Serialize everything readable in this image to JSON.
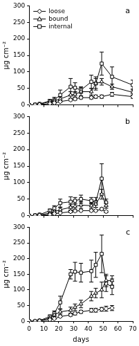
{
  "chart_data": [
    {
      "type": "line",
      "annotation": "a",
      "ylabel": "µg cm⁻²",
      "legend": "upper left",
      "grid": false,
      "tick_labels": "y",
      "x": [
        0,
        4,
        7,
        14,
        17,
        21,
        28,
        31,
        35,
        42,
        45,
        49,
        56,
        70
      ],
      "xlim": [
        0,
        70
      ],
      "xticks": [
        0,
        10,
        20,
        30,
        40,
        50,
        60,
        70
      ],
      "ylim": [
        0,
        300
      ],
      "yticks": [
        0,
        50,
        100,
        150,
        200,
        250,
        300
      ],
      "series": [
        {
          "name": "loose",
          "color": "#000000",
          "marker": "diamond",
          "values": [
            0,
            0,
            1,
            4,
            6,
            10,
            15,
            18,
            22,
            22,
            25,
            25,
            32,
            25
          ],
          "errors": [
            0,
            0,
            0,
            1,
            2,
            2,
            3,
            4,
            4,
            4,
            5,
            5,
            6,
            5
          ]
        },
        {
          "name": "bound",
          "color": "#000000",
          "marker": "triangle",
          "values": [
            0,
            0,
            2,
            10,
            12,
            18,
            30,
            32,
            40,
            40,
            65,
            70,
            55,
            38
          ],
          "errors": [
            0,
            0,
            1,
            3,
            4,
            6,
            10,
            8,
            12,
            10,
            15,
            10,
            8,
            10
          ]
        },
        {
          "name": "internal",
          "color": "#000000",
          "marker": "square",
          "values": [
            0,
            1,
            3,
            12,
            15,
            30,
            55,
            52,
            45,
            70,
            65,
            125,
            85,
            60
          ],
          "errors": [
            0,
            0,
            1,
            5,
            8,
            15,
            25,
            15,
            10,
            20,
            20,
            35,
            30,
            15
          ]
        }
      ]
    },
    {
      "type": "line",
      "annotation": "b",
      "ylabel": "µg cm⁻²",
      "grid": false,
      "tick_labels": "y",
      "x": [
        0,
        4,
        7,
        14,
        17,
        21,
        28,
        31,
        35,
        42,
        45,
        49,
        52
      ],
      "xlim": [
        0,
        70
      ],
      "xticks": [
        0,
        10,
        20,
        30,
        40,
        50,
        60,
        70
      ],
      "ylim": [
        0,
        300
      ],
      "yticks": [
        0,
        50,
        100,
        150,
        200,
        250,
        300
      ],
      "series": [
        {
          "name": "loose",
          "color": "#000000",
          "marker": "diamond",
          "values": [
            0,
            0,
            1,
            3,
            6,
            8,
            12,
            14,
            15,
            15,
            15,
            20,
            12
          ],
          "errors": [
            0,
            0,
            0,
            1,
            2,
            2,
            3,
            3,
            3,
            3,
            3,
            4,
            3
          ]
        },
        {
          "name": "bound",
          "color": "#000000",
          "marker": "triangle",
          "values": [
            0,
            0,
            2,
            8,
            12,
            18,
            25,
            28,
            32,
            30,
            35,
            65,
            30
          ],
          "errors": [
            0,
            0,
            1,
            3,
            4,
            6,
            8,
            8,
            10,
            8,
            10,
            15,
            8
          ]
        },
        {
          "name": "internal",
          "color": "#000000",
          "marker": "square",
          "values": [
            0,
            1,
            3,
            15,
            22,
            38,
            42,
            45,
            50,
            45,
            40,
            112,
            40
          ],
          "errors": [
            0,
            0,
            1,
            5,
            8,
            12,
            15,
            10,
            12,
            10,
            15,
            45,
            10
          ]
        }
      ]
    },
    {
      "type": "line",
      "annotation": "c",
      "ylabel": "µg cm⁻²",
      "xlabel": "days",
      "grid": false,
      "x": [
        0,
        4,
        7,
        14,
        17,
        21,
        28,
        31,
        35,
        42,
        45,
        49,
        52,
        56
      ],
      "xlim": [
        0,
        70
      ],
      "xticks": [
        0,
        10,
        20,
        30,
        40,
        50,
        60,
        70
      ],
      "ylim": [
        0,
        300
      ],
      "yticks": [
        0,
        50,
        100,
        150,
        200,
        250,
        300
      ],
      "series": [
        {
          "name": "loose",
          "color": "#000000",
          "marker": "diamond",
          "values": [
            0,
            0,
            1,
            5,
            8,
            15,
            20,
            25,
            30,
            35,
            35,
            38,
            40,
            42
          ],
          "errors": [
            0,
            0,
            1,
            2,
            2,
            3,
            4,
            5,
            5,
            6,
            6,
            6,
            8,
            8
          ]
        },
        {
          "name": "bound",
          "color": "#000000",
          "marker": "triangle",
          "values": [
            0,
            0,
            2,
            10,
            20,
            30,
            35,
            45,
            55,
            80,
            90,
            100,
            130,
            130
          ],
          "errors": [
            0,
            0,
            1,
            3,
            5,
            8,
            10,
            10,
            12,
            15,
            15,
            25,
            20,
            15
          ]
        },
        {
          "name": "internal",
          "color": "#000000",
          "marker": "square",
          "values": [
            0,
            0,
            2,
            15,
            25,
            60,
            150,
            158,
            155,
            160,
            180,
            215,
            120,
            110
          ],
          "errors": [
            0,
            0,
            1,
            5,
            8,
            20,
            15,
            30,
            30,
            35,
            40,
            60,
            25,
            25
          ]
        }
      ]
    }
  ]
}
